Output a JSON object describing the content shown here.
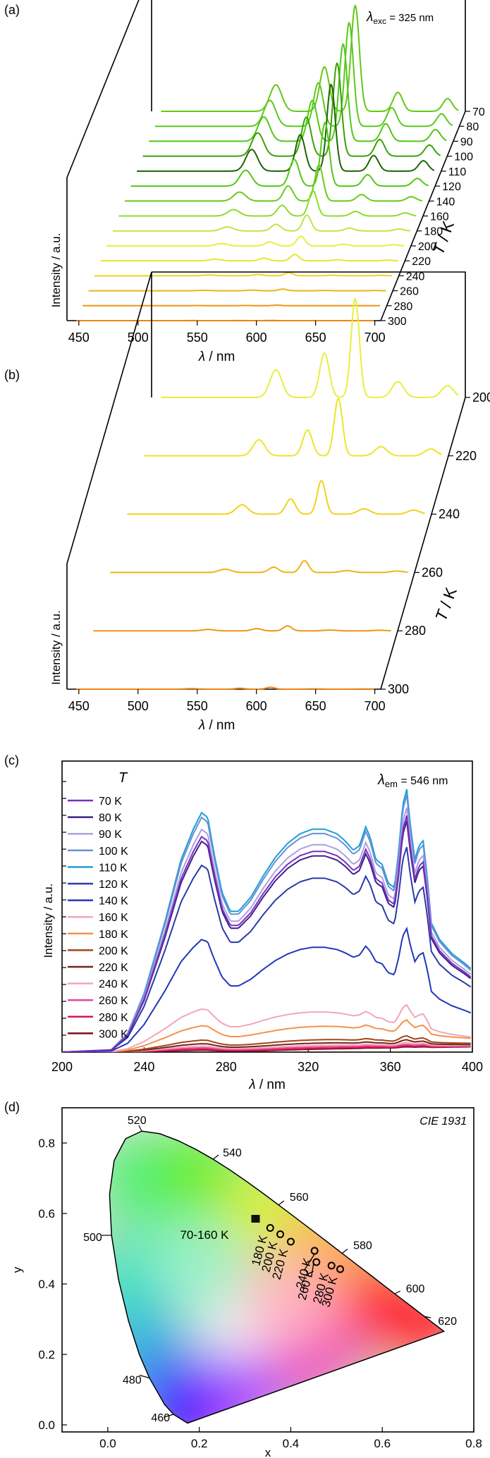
{
  "chart_data": [
    {
      "panel": "(a)",
      "type": "line",
      "annotation": "λexc = 325 nm",
      "xlabel": "λ / nm",
      "ylabel": "Intensity / a.u.",
      "zlabel": "T / K",
      "x_ticks": [
        450,
        500,
        550,
        600,
        650,
        700
      ],
      "xlim": [
        440,
        705
      ],
      "temperatures": [
        70,
        80,
        90,
        100,
        110,
        120,
        140,
        160,
        180,
        200,
        220,
        240,
        260,
        280,
        300
      ],
      "colors": [
        "#64c814",
        "#5ac81e",
        "#50c814",
        "#3ca00a",
        "#1e6400",
        "#50c814",
        "#6ec81e",
        "#8cdc28",
        "#bee646",
        "#e6f03c",
        "#ebe628",
        "#f0d21e",
        "#f0b414",
        "#f09614",
        "#f08214"
      ],
      "peaks": [
        {
          "center": 545,
          "rel": 0.25,
          "width": 5
        },
        {
          "center": 586,
          "rel": 0.42,
          "width": 4
        },
        {
          "center": 612,
          "rel": 1.0,
          "width": 3.5
        },
        {
          "center": 648,
          "rel": 0.18,
          "width": 4
        },
        {
          "center": 690,
          "rel": 0.12,
          "width": 4
        }
      ],
      "peak_heights": [
        1.0,
        0.98,
        0.92,
        0.88,
        0.82,
        0.6,
        0.34,
        0.24,
        0.15,
        0.09,
        0.06,
        0.03,
        0.015,
        0.005,
        0.002
      ]
    },
    {
      "panel": "(b)",
      "type": "line",
      "xlabel": "λ / nm",
      "ylabel": "Intensity / a.u.",
      "zlabel": "T / K",
      "x_ticks": [
        450,
        500,
        550,
        600,
        650,
        700
      ],
      "xlim": [
        440,
        705
      ],
      "temperatures": [
        200,
        220,
        240,
        260,
        280,
        300
      ],
      "colors": [
        "#e6f03c",
        "#ebe628",
        "#f0d21e",
        "#f0b414",
        "#f09614",
        "#f08214"
      ],
      "peaks": [
        {
          "center": 545,
          "rel": 0.28,
          "width": 5
        },
        {
          "center": 586,
          "rel": 0.45,
          "width": 4
        },
        {
          "center": 612,
          "rel": 1.0,
          "width": 3.5
        },
        {
          "center": 648,
          "rel": 0.16,
          "width": 5
        },
        {
          "center": 690,
          "rel": 0.12,
          "width": 5
        }
      ],
      "peak_heights": [
        1.0,
        0.58,
        0.34,
        0.12,
        0.05,
        0.02
      ]
    },
    {
      "panel": "(c)",
      "type": "line",
      "annotation": "λem = 546 nm",
      "xlabel": "λ / nm",
      "ylabel": "Intensity / a.u.",
      "legend_title": "T",
      "legend_position": "top-left",
      "x_ticks": [
        200,
        240,
        280,
        320,
        360,
        400
      ],
      "xlim": [
        200,
        400
      ],
      "ylim": [
        0,
        1.12
      ],
      "series": [
        {
          "name": "70 K",
          "color": "#7b2fbe",
          "scale": 0.9
        },
        {
          "name": "80 K",
          "color": "#3f1f8c",
          "scale": 0.88
        },
        {
          "name": "90 K",
          "color": "#a7a4e0",
          "scale": 0.93
        },
        {
          "name": "100 K",
          "color": "#6a8fd8",
          "scale": 0.98
        },
        {
          "name": "110 K",
          "color": "#1f9ed6",
          "scale": 1.0
        },
        {
          "name": "120 K",
          "color": "#2a3aa6",
          "scale": 0.78
        },
        {
          "name": "140 K",
          "color": "#2138b8",
          "scale": 0.47
        },
        {
          "name": "160 K",
          "color": "#f2a6b8",
          "scale": 0.18
        },
        {
          "name": "180 K",
          "color": "#f4914a",
          "scale": 0.11
        },
        {
          "name": "200 K",
          "color": "#a6421c",
          "scale": 0.05
        },
        {
          "name": "220 K",
          "color": "#6b2a14",
          "scale": 0.035
        },
        {
          "name": "240 K",
          "color": "#f5a3c0",
          "scale": 0.025
        },
        {
          "name": "260 K",
          "color": "#e8469a",
          "scale": 0.018
        },
        {
          "name": "280 K",
          "color": "#d4184a",
          "scale": 0.012
        },
        {
          "name": "300 K",
          "color": "#7a0e1e",
          "scale": 0.008
        }
      ],
      "profile_x": [
        200,
        224,
        232,
        240,
        250,
        258,
        264,
        268,
        271,
        274,
        278,
        282,
        286,
        292,
        298,
        304,
        310,
        316,
        322,
        328,
        334,
        338,
        342,
        345,
        348,
        350,
        353,
        356,
        359,
        362,
        364,
        366,
        368,
        370,
        372,
        374,
        376,
        378,
        380,
        384,
        390,
        396,
        400
      ],
      "profile_y": [
        0,
        0.01,
        0.08,
        0.25,
        0.55,
        0.82,
        0.95,
        1.02,
        1.0,
        0.85,
        0.68,
        0.6,
        0.6,
        0.66,
        0.75,
        0.83,
        0.89,
        0.93,
        0.95,
        0.95,
        0.93,
        0.9,
        0.86,
        0.88,
        0.96,
        0.92,
        0.82,
        0.8,
        0.72,
        0.7,
        0.85,
        1.05,
        1.12,
        0.95,
        0.82,
        0.88,
        0.9,
        0.75,
        0.55,
        0.48,
        0.42,
        0.38,
        0.35
      ]
    },
    {
      "panel": "(d)",
      "type": "scatter",
      "title": "CIE 1931",
      "xlabel": "x",
      "ylabel": "y",
      "x_ticks": [
        "0.0",
        "0.2",
        "0.4",
        "0.6",
        "0.8"
      ],
      "y_ticks": [
        "0.0",
        "0.2",
        "0.4",
        "0.6",
        "0.8"
      ],
      "xlim": [
        -0.1,
        0.8
      ],
      "ylim": [
        -0.02,
        0.9
      ],
      "wavelength_labels": [
        {
          "label": "460",
          "x": 0.144,
          "y": 0.03
        },
        {
          "label": "480",
          "x": 0.091,
          "y": 0.133
        },
        {
          "label": "500",
          "x": 0.008,
          "y": 0.538
        },
        {
          "label": "520",
          "x": 0.074,
          "y": 0.834
        },
        {
          "label": "540",
          "x": 0.23,
          "y": 0.754
        },
        {
          "label": "560",
          "x": 0.373,
          "y": 0.624
        },
        {
          "label": "580",
          "x": 0.512,
          "y": 0.487
        },
        {
          "label": "600",
          "x": 0.627,
          "y": 0.372
        },
        {
          "label": "620",
          "x": 0.691,
          "y": 0.308
        }
      ],
      "points": [
        {
          "label": "70-160 K",
          "x": 0.323,
          "y": 0.584,
          "marker": "cluster"
        },
        {
          "label": "180 K",
          "x": 0.355,
          "y": 0.559,
          "marker": "circle"
        },
        {
          "label": "200 K",
          "x": 0.377,
          "y": 0.541,
          "marker": "circle"
        },
        {
          "label": "220 K",
          "x": 0.4,
          "y": 0.52,
          "marker": "circle"
        },
        {
          "label": "240 K",
          "x": 0.452,
          "y": 0.494,
          "marker": "circle"
        },
        {
          "label": "260 K",
          "x": 0.456,
          "y": 0.462,
          "marker": "circle"
        },
        {
          "label": "280 K",
          "x": 0.489,
          "y": 0.452,
          "marker": "circle"
        },
        {
          "label": "300 K",
          "x": 0.508,
          "y": 0.442,
          "marker": "circle"
        }
      ]
    }
  ],
  "panel_labels": [
    "(a)",
    "(b)",
    "(c)",
    "(d)"
  ]
}
